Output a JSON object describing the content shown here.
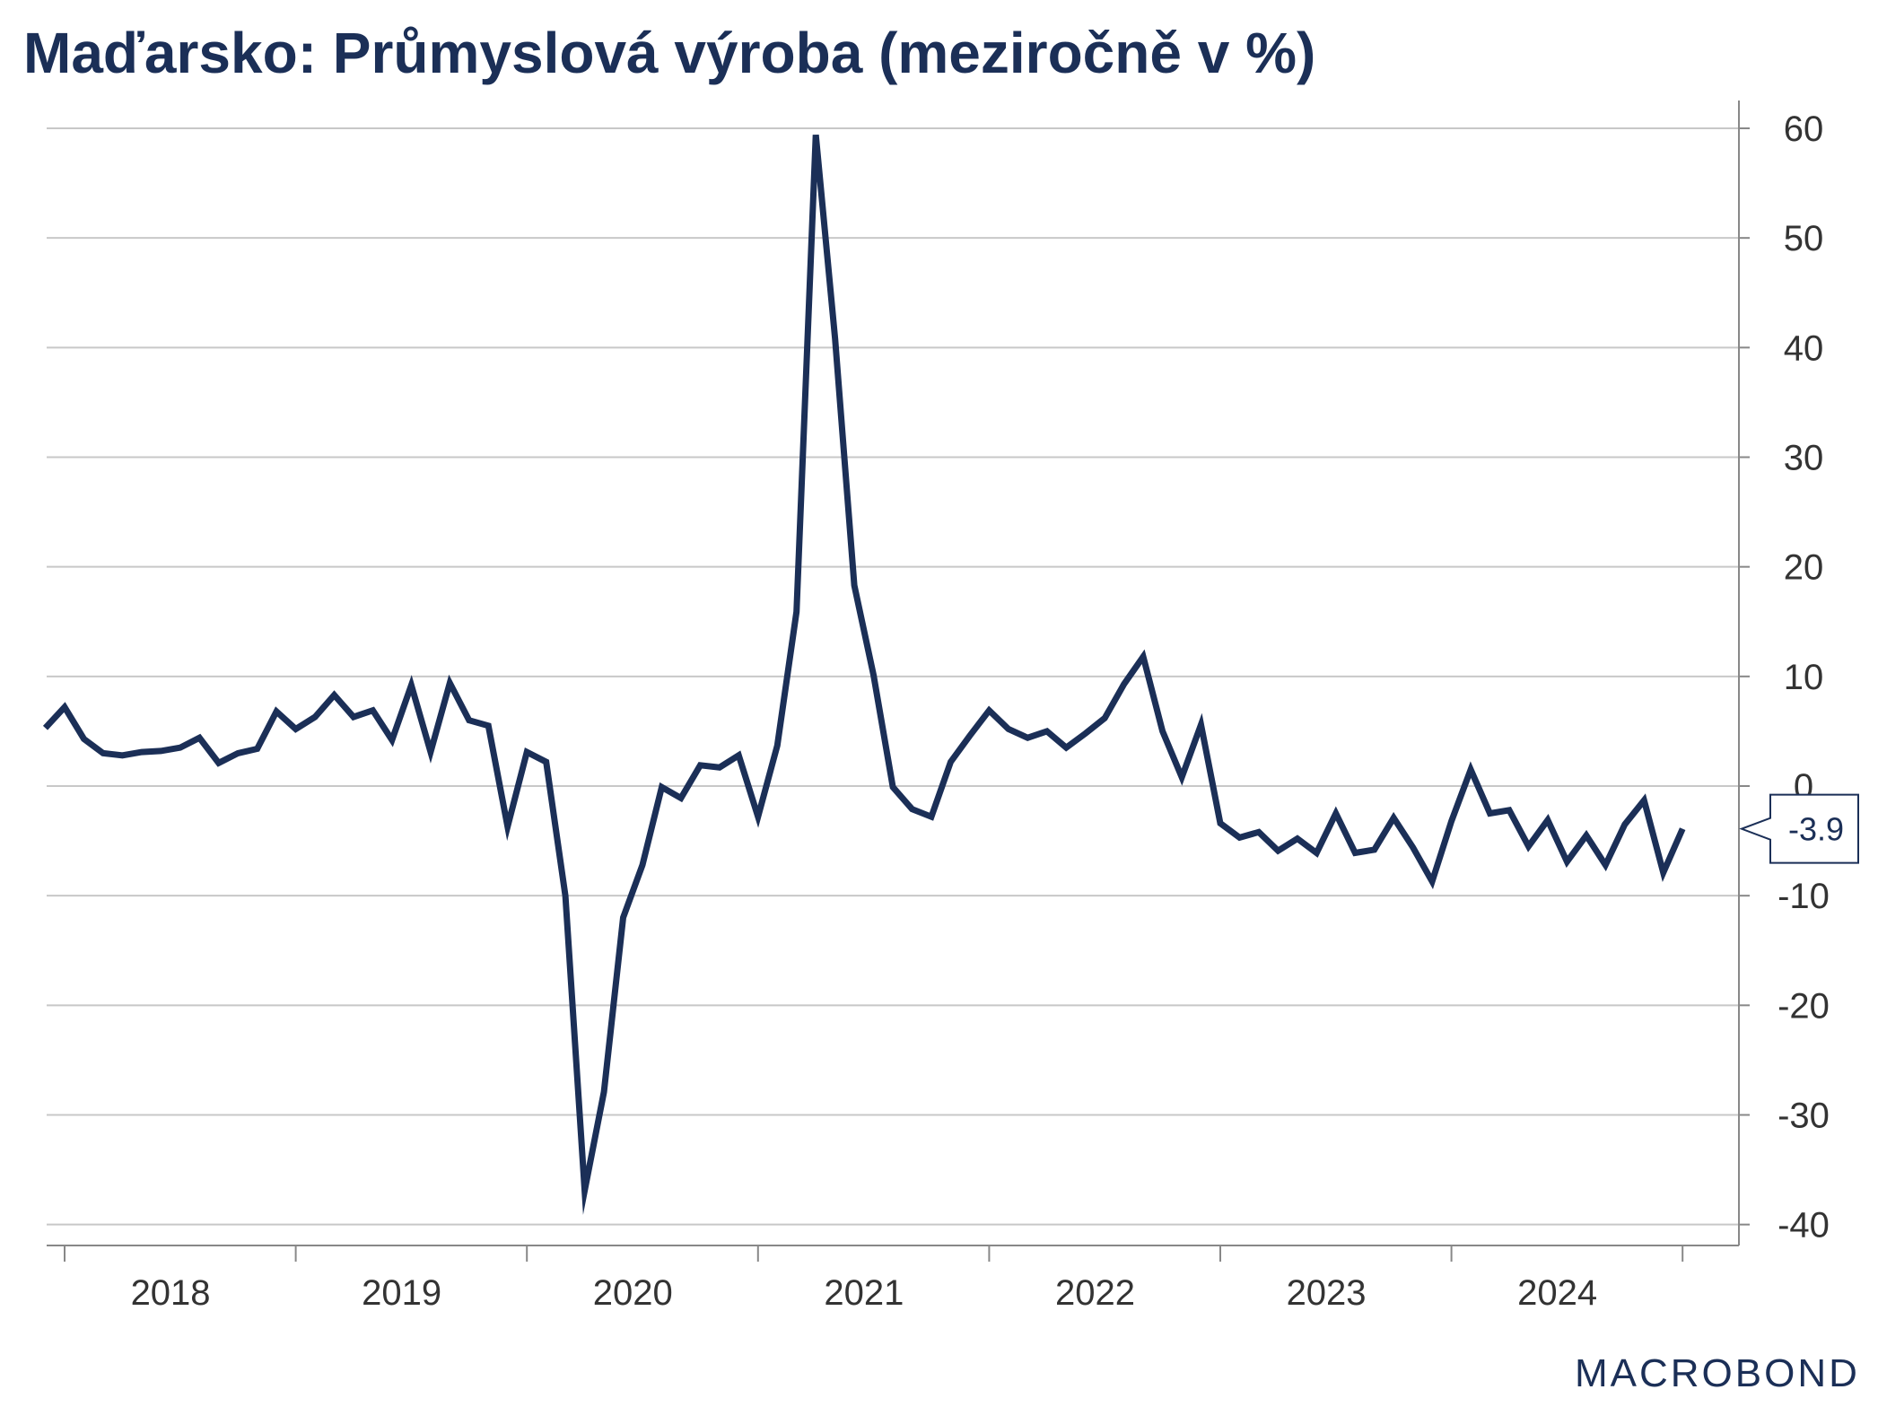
{
  "title": "Maďarsko: Průmyslová výroba (meziročně v %)",
  "brand": "MACROBOND",
  "chart_data": {
    "type": "line",
    "title": "Maďarsko: Průmyslová výroba (meziročně v %)",
    "xlabel": "",
    "ylabel": "",
    "ylim": [
      -42,
      62
    ],
    "y_ticks": [
      60,
      50,
      40,
      30,
      20,
      10,
      0,
      -10,
      -20,
      -30,
      -40
    ],
    "x_ticks": [
      "2018",
      "2019",
      "2020",
      "2021",
      "2022",
      "2023",
      "2024"
    ],
    "grid": true,
    "y_axis_position": "right",
    "line_color": "#1b2f57",
    "last_value_label": "-3.9",
    "series": [
      {
        "x": [
          "2017-12",
          "2018-01",
          "2018-02",
          "2018-03",
          "2018-04",
          "2018-05",
          "2018-06",
          "2018-07",
          "2018-08",
          "2018-09",
          "2018-10",
          "2018-11",
          "2018-12",
          "2019-01",
          "2019-02",
          "2019-03",
          "2019-04",
          "2019-05",
          "2019-06",
          "2019-07",
          "2019-08",
          "2019-09",
          "2019-10",
          "2019-11",
          "2019-12",
          "2020-01",
          "2020-02",
          "2020-03",
          "2020-04",
          "2020-05",
          "2020-06",
          "2020-07",
          "2020-08",
          "2020-09",
          "2020-10",
          "2020-11",
          "2020-12",
          "2021-01",
          "2021-02",
          "2021-03",
          "2021-04",
          "2021-05",
          "2021-06",
          "2021-07",
          "2021-08",
          "2021-09",
          "2021-10",
          "2021-11",
          "2021-12",
          "2022-01",
          "2022-02",
          "2022-03",
          "2022-04",
          "2022-05",
          "2022-06",
          "2022-07",
          "2022-08",
          "2022-09",
          "2022-10",
          "2022-11",
          "2022-12",
          "2023-01",
          "2023-02",
          "2023-03",
          "2023-04",
          "2023-05",
          "2023-06",
          "2023-07",
          "2023-08",
          "2023-09",
          "2023-10",
          "2023-11",
          "2023-12",
          "2024-01",
          "2024-02",
          "2024-03",
          "2024-04",
          "2024-05",
          "2024-06",
          "2024-07",
          "2024-08",
          "2024-09",
          "2024-10",
          "2024-11",
          "2024-12",
          "2025-01"
        ],
        "values": [
          5.3,
          7.2,
          4.3,
          3.0,
          2.8,
          3.1,
          3.2,
          3.5,
          4.4,
          2.1,
          3.0,
          3.4,
          6.8,
          5.2,
          6.3,
          8.3,
          6.3,
          6.9,
          4.2,
          9.2,
          3.1,
          9.4,
          6.0,
          5.5,
          -3.7,
          3.1,
          2.2,
          -10.0,
          -36.9,
          -27.9,
          -12.0,
          -7.2,
          -0.1,
          -1.1,
          1.9,
          1.7,
          2.8,
          -2.8,
          3.7,
          15.9,
          59.4,
          40.8,
          18.3,
          10.1,
          -0.1,
          -2.1,
          -2.8,
          2.2,
          4.6,
          6.9,
          5.2,
          4.4,
          5.0,
          3.5,
          4.8,
          6.2,
          9.3,
          11.8,
          5.0,
          0.8,
          5.6,
          -3.4,
          -4.7,
          -4.2,
          -5.9,
          -4.8,
          -6.1,
          -2.5,
          -6.1,
          -5.8,
          -2.9,
          -5.6,
          -8.7,
          -3.2,
          1.5,
          -2.5,
          -2.2,
          -5.5,
          -3.1,
          -6.9,
          -4.5,
          -7.2,
          -3.5,
          -1.3,
          -7.9,
          -3.9
        ]
      }
    ]
  }
}
